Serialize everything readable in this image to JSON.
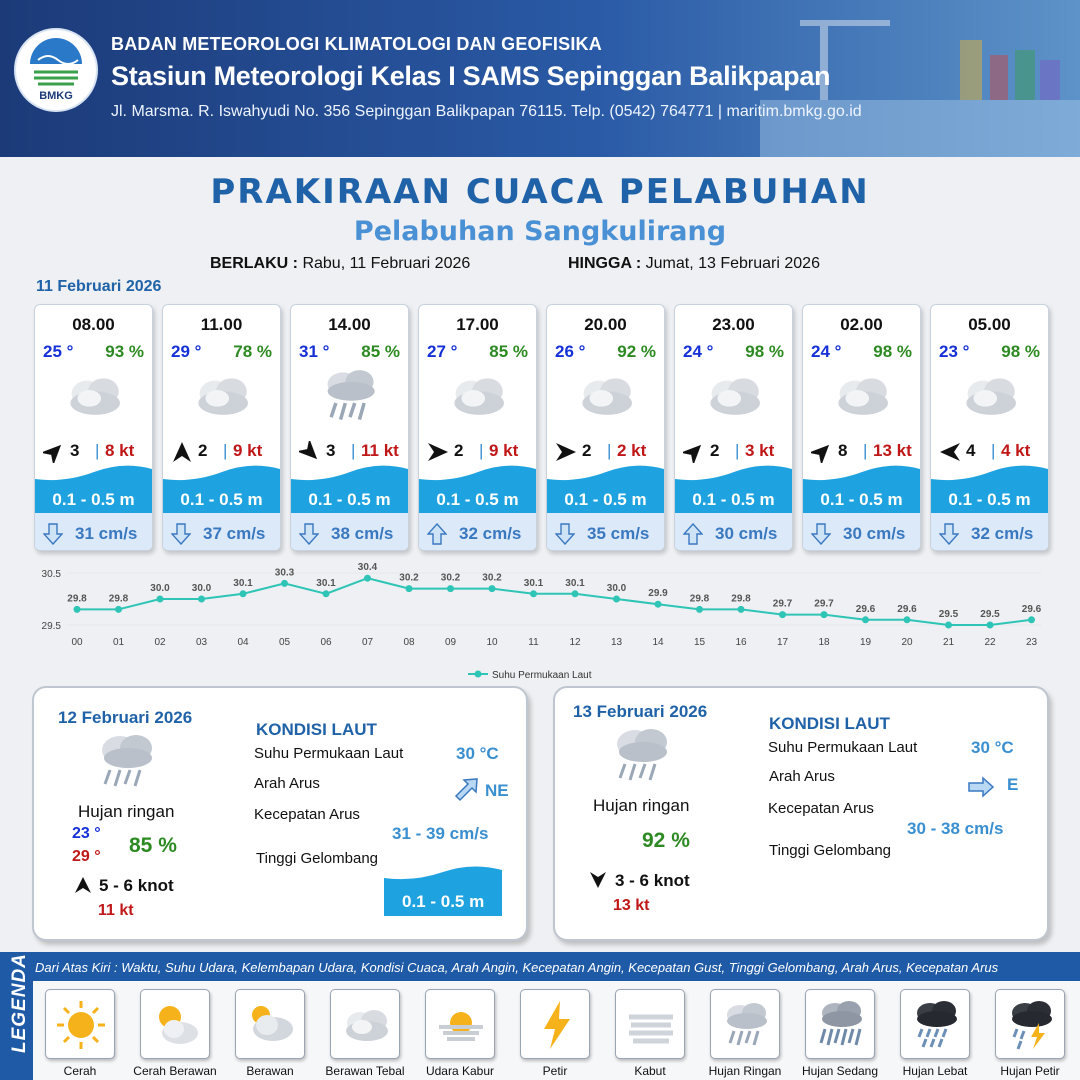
{
  "header": {
    "org": "BADAN METEOROLOGI KLIMATOLOGI DAN GEOFISIKA",
    "station": "Stasiun Meteorologi Kelas I SAMS Sepinggan Balikpapan",
    "address": "Jl. Marsma. R. Iswahyudi No. 356 Sepinggan Balikpapan 76115. Telp. (0542) 764771 | maritim.bmkg.go.id",
    "logo_text": "BMKG"
  },
  "title": "PRAKIRAAN CUACA PELABUHAN",
  "subtitle": "Pelabuhan Sangkulirang",
  "validity": {
    "from_label": "BERLAKU :",
    "from": "Rabu, 11 Februari 2026",
    "to_label": "HINGGA :",
    "to": "Jumat, 13 Februari 2026"
  },
  "day1": {
    "date": "11 Februari 2026",
    "cards": [
      {
        "time": "08.00",
        "temp": "25 °",
        "rh": "93 %",
        "icon": "berawan-tebal-icon",
        "wind_dir_deg": 45,
        "wind": "3",
        "bar": "|",
        "gust": "8 kt",
        "wave": "0.1 - 0.5 m",
        "current_dir": "down",
        "current": "31 cm/s"
      },
      {
        "time": "11.00",
        "temp": "29 °",
        "rh": "78 %",
        "icon": "berawan-tebal-icon",
        "wind_dir_deg": 0,
        "wind": "2",
        "bar": "|",
        "gust": "9 kt",
        "wave": "0.1 - 0.5 m",
        "current_dir": "down",
        "current": "37 cm/s"
      },
      {
        "time": "14.00",
        "temp": "31 °",
        "rh": "85 %",
        "icon": "hujan-ringan-icon",
        "wind_dir_deg": 135,
        "wind": "3",
        "bar": "|",
        "gust": "11 kt",
        "wave": "0.1 - 0.5 m",
        "current_dir": "down",
        "current": "38 cm/s"
      },
      {
        "time": "17.00",
        "temp": "27 °",
        "rh": "85 %",
        "icon": "berawan-tebal-icon",
        "wind_dir_deg": 90,
        "wind": "2",
        "bar": "|",
        "gust": "9 kt",
        "wave": "0.1 - 0.5 m",
        "current_dir": "up",
        "current": "32 cm/s"
      },
      {
        "time": "20.00",
        "temp": "26 °",
        "rh": "92 %",
        "icon": "berawan-tebal-icon",
        "wind_dir_deg": 90,
        "wind": "2",
        "bar": "|",
        "gust": "2 kt",
        "wave": "0.1 - 0.5 m",
        "current_dir": "down",
        "current": "35 cm/s"
      },
      {
        "time": "23.00",
        "temp": "24 °",
        "rh": "98 %",
        "icon": "berawan-tebal-icon",
        "wind_dir_deg": 45,
        "wind": "2",
        "bar": "|",
        "gust": "3 kt",
        "wave": "0.1 - 0.5 m",
        "current_dir": "up",
        "current": "30 cm/s"
      },
      {
        "time": "02.00",
        "temp": "24 °",
        "rh": "98 %",
        "icon": "berawan-tebal-icon",
        "wind_dir_deg": 45,
        "wind": "8",
        "bar": "|",
        "gust": "13 kt",
        "wave": "0.1 - 0.5 m",
        "current_dir": "down",
        "current": "30 cm/s"
      },
      {
        "time": "05.00",
        "temp": "23 °",
        "rh": "98 %",
        "icon": "berawan-tebal-icon",
        "wind_dir_deg": 270,
        "wind": "4",
        "bar": "|",
        "gust": "4 kt",
        "wave": "0.1 - 0.5 m",
        "current_dir": "down",
        "current": "32 cm/s"
      }
    ]
  },
  "chart_data": {
    "type": "line",
    "x": [
      "00",
      "01",
      "02",
      "03",
      "04",
      "05",
      "06",
      "07",
      "08",
      "09",
      "10",
      "11",
      "12",
      "13",
      "14",
      "15",
      "16",
      "17",
      "18",
      "19",
      "20",
      "21",
      "22",
      "23"
    ],
    "series": [
      {
        "name": "Suhu Permukaan Laut",
        "values": [
          29.8,
          29.8,
          30.0,
          30.0,
          30.1,
          30.3,
          30.1,
          30.4,
          30.2,
          30.2,
          30.2,
          30.1,
          30.1,
          30.0,
          29.9,
          29.8,
          29.8,
          29.7,
          29.7,
          29.6,
          29.6,
          29.5,
          29.5,
          29.6
        ],
        "color": "#2ec4b6"
      }
    ],
    "ylim": [
      29.5,
      30.5
    ],
    "yticks": [
      "30.5",
      "29.5"
    ],
    "legend_position": "bottom-center"
  },
  "day2": {
    "date": "12 Februari 2026",
    "condition": "Hujan ringan",
    "tmin": "23 °",
    "tmax": "29 °",
    "rh": "85 %",
    "wind": "5  - 6 knot",
    "gust": "11 kt",
    "sea_heading": "KONDISI LAUT",
    "sst_label": "Suhu Permukaan Laut",
    "sst": "30 °C",
    "dir_label": "Arah Arus",
    "dir": "NE",
    "speed_label": "Kecepatan Arus",
    "speed": "31  - 39 cm/s",
    "wave_label": "Tinggi Gelombang",
    "wave": "0.1 - 0.5 m"
  },
  "day3": {
    "date": "13 Februari 2026",
    "condition": "Hujan ringan",
    "rh": "92 %",
    "wind": "3  - 6 knot",
    "gust": "13 kt",
    "sea_heading": "KONDISI LAUT",
    "sst_label": "Suhu Permukaan Laut",
    "sst": "30 °C",
    "dir_label": "Arah Arus",
    "dir": "E",
    "speed_label": "Kecepatan Arus",
    "speed": "30  - 38 cm/s",
    "wave_label": "Tinggi Gelombang"
  },
  "legend": {
    "title": "LEGENDA",
    "description": "Dari Atas Kiri : Waktu, Suhu Udara, Kelembapan Udara, Kondisi Cuaca, Arah Angin, Kecepatan Angin, Kecepatan Gust, Tinggi Gelombang, Arah Arus, Kecepatan Arus",
    "items": [
      {
        "name": "Cerah",
        "icon": "cerah-icon"
      },
      {
        "name": "Cerah Berawan",
        "icon": "cerah-berawan-icon"
      },
      {
        "name": "Berawan",
        "icon": "berawan-icon"
      },
      {
        "name": "Berawan Tebal",
        "icon": "berawan-tebal-icon"
      },
      {
        "name": "Udara Kabur",
        "icon": "udara-kabur-icon"
      },
      {
        "name": "Petir",
        "icon": "petir-icon"
      },
      {
        "name": "Kabut",
        "icon": "kabut-icon"
      },
      {
        "name": "Hujan Ringan",
        "icon": "hujan-ringan-icon"
      },
      {
        "name": "Hujan Sedang",
        "icon": "hujan-sedang-icon"
      },
      {
        "name": "Hujan Lebat",
        "icon": "hujan-lebat-icon"
      },
      {
        "name": "Hujan Petir",
        "icon": "hujan-petir-icon"
      }
    ]
  },
  "colors": {
    "brand": "#1f62a8",
    "temp": "#1530d6",
    "humidity": "#2d8a22",
    "gust": "#c01818",
    "wave": "#1fa3e0",
    "current": "#3a78c0"
  }
}
